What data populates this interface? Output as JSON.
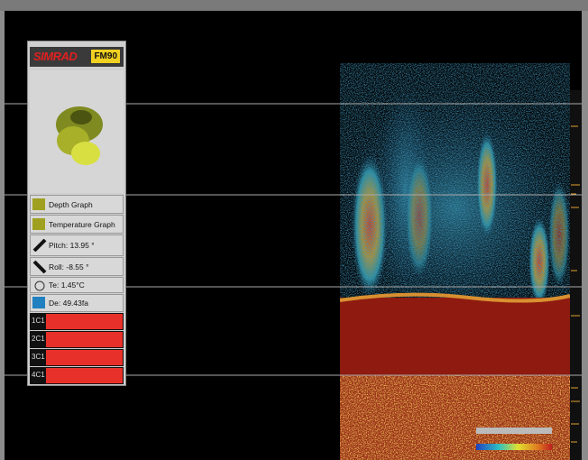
{
  "panel": {
    "brand": "SIMRAD",
    "model": "FM90",
    "buttons": [
      "Depth Graph",
      "Temperature Graph"
    ],
    "pitch": "Pitch: 13.95 °",
    "roll": "Roll: -8.55 °",
    "temperature": "Te: 1.45°C",
    "depth": "De: 49.43fa",
    "channels": [
      "1C1",
      "2C1",
      "3C1",
      "4C1"
    ]
  }
}
